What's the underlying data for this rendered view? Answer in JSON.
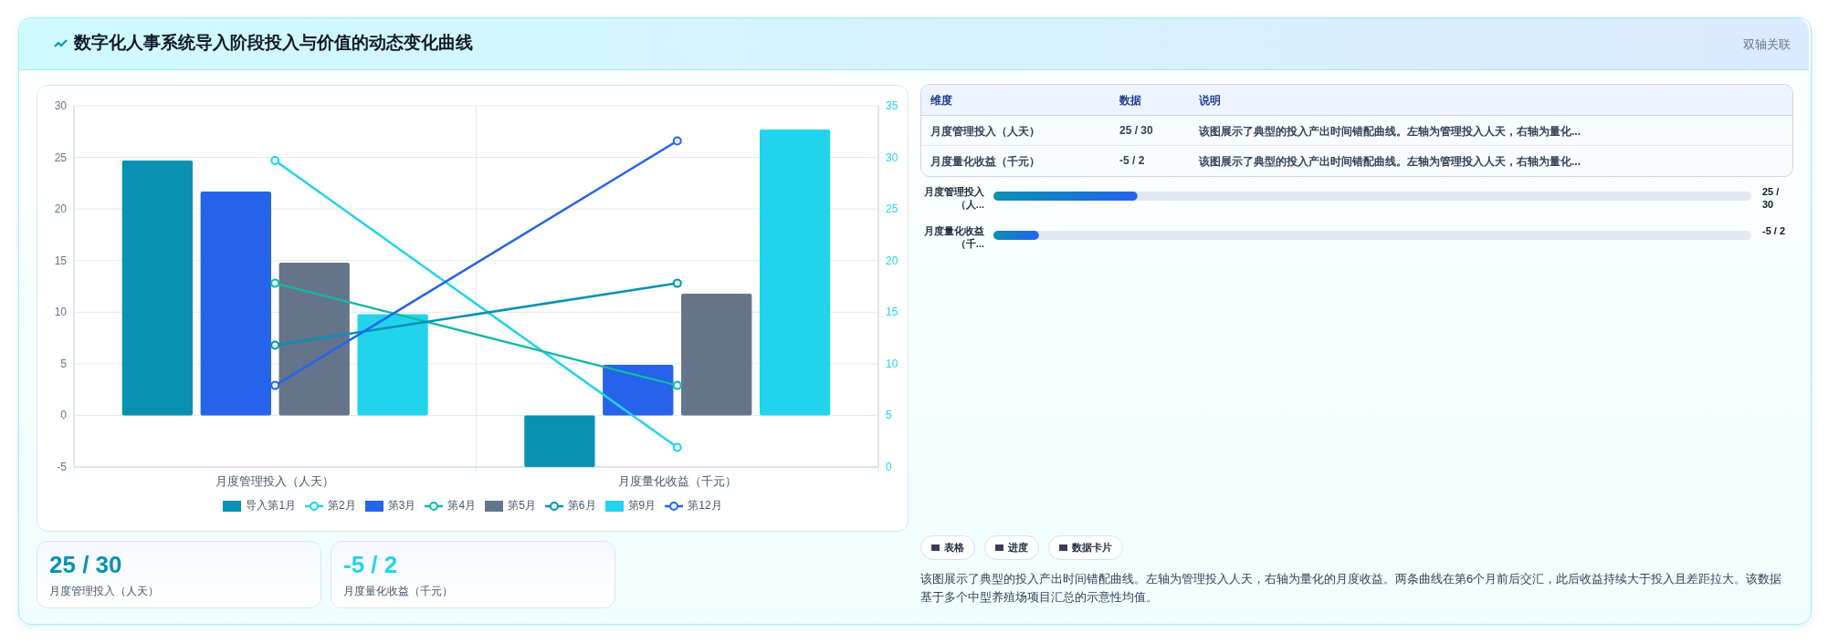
{
  "chart_data": [
    {
      "type": "other",
      "title": "数字化人事系统导入阶段投入与价值的动态变化曲线",
      "annotations": [
        "双轴关联"
      ]
    },
    {
      "type": "bar",
      "categories": [
        "月度管理投入（人天）",
        "月度量化收益（千元）"
      ],
      "series": [
        {
          "name": "导入第1月",
          "color": "#0891b2",
          "values": [
            24.7,
            -5
          ]
        },
        {
          "name": "第2月",
          "type": "line",
          "axis": "y2",
          "color": "#22d3ee",
          "values": [
            29.7,
            1.9
          ]
        },
        {
          "name": "第3月",
          "color": "#2563eb",
          "values": [
            21.7,
            4.9
          ]
        },
        {
          "name": "第4月",
          "type": "line",
          "axis": "y2",
          "color": "#14b8a6",
          "values": [
            17.8,
            7.9
          ]
        },
        {
          "name": "第5月",
          "color": "#64748b",
          "values": [
            14.8,
            11.8
          ]
        },
        {
          "name": "第6月",
          "type": "line",
          "axis": "y2",
          "color": "#0891b2",
          "values": [
            11.8,
            17.8
          ]
        },
        {
          "name": "第9月",
          "color": "#22d3ee",
          "values": [
            9.8,
            27.7
          ]
        },
        {
          "name": "第12月",
          "type": "line",
          "axis": "y2",
          "color": "#2563eb",
          "values": [
            7.9,
            31.6
          ]
        }
      ],
      "ylim": [
        -5,
        30
      ],
      "yticks": [
        -5,
        0,
        5,
        10,
        15,
        20,
        25,
        30
      ],
      "y2lim": [
        0,
        35
      ],
      "y2ticks": [
        0,
        5,
        10,
        15,
        20,
        25,
        30,
        35
      ],
      "grid": true,
      "legend": "bottom",
      "marker": "circle"
    },
    {
      "type": "other",
      "categories": [
        "维度",
        "数据",
        "说明"
      ],
      "annotations": [
        "月度管理投入（人天）",
        "25 / 30",
        "该图展示了典型的投入产出时间错配曲线。左轴为管理投入人天，右轴为量化...",
        "月度量化收益（千元）",
        "-5 / 2",
        "该图展示了典型的投入产出时间错配曲线。左轴为管理投入人天，右轴为量化..."
      ]
    },
    {
      "type": "other",
      "annotations": [
        "月度管理投入（人...",
        "25 / 30",
        "月度量化收益（千...",
        "-5 / 2"
      ]
    },
    {
      "type": "other",
      "annotations": [
        "25 / 30",
        "月度管理投入（人天）",
        "-5 / 2",
        "月度量化收益（千元）"
      ]
    },
    {
      "type": "other",
      "annotations": [
        "表格",
        "进度",
        "数据卡片",
        "该图展示了典型的投入产出时间错配曲线。左轴为管理投入人天，右轴为量化的月度收益。两条曲线在第6个月前后交汇，此后收益持续大于投入且差距拉大。该数据基于多个中型养殖场项目汇总的示意性均值。"
      ]
    }
  ]
}
